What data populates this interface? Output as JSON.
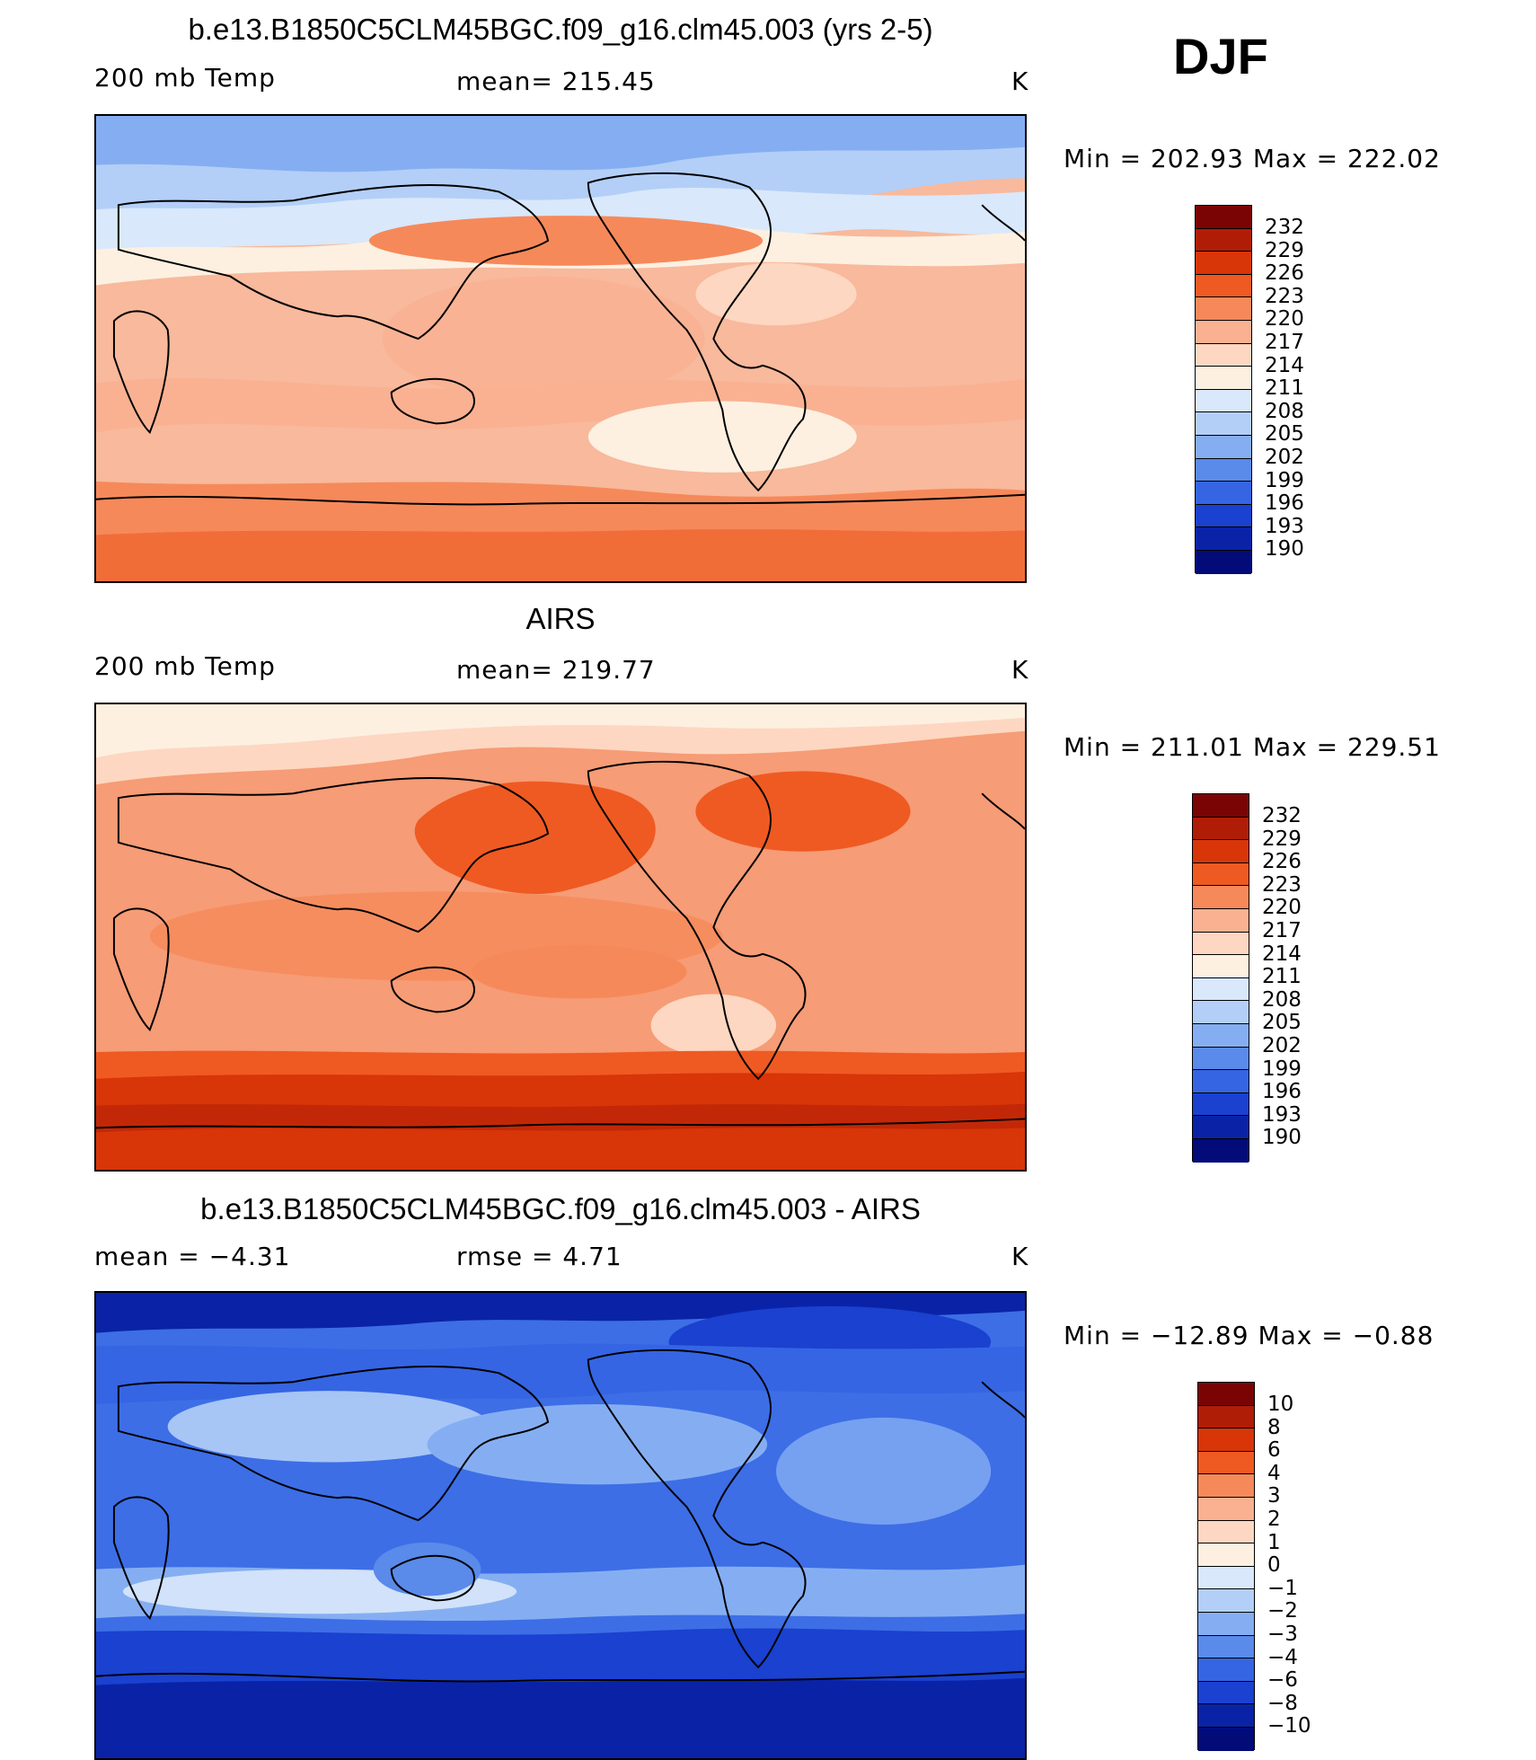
{
  "season": "DJF",
  "panels": [
    {
      "title": "b.e13.B1850C5CLM45BGC.f09_g16.clm45.003 (yrs 2-5)",
      "left_label": "200 mb Temp",
      "center_label": "mean= 215.45",
      "units": "K",
      "minmax": "Min  =  202.93  Max  =  222.02",
      "legend_labels": [
        "232",
        "229",
        "226",
        "223",
        "220",
        "217",
        "214",
        "211",
        "208",
        "205",
        "202",
        "199",
        "196",
        "193",
        "190"
      ],
      "map_background": "#f8b99c"
    },
    {
      "title": "AIRS",
      "left_label": "200 mb Temp",
      "center_label": "mean= 219.77",
      "units": "K",
      "minmax": "Min  =  211.01  Max  =  229.51",
      "legend_labels": [
        "232",
        "229",
        "226",
        "223",
        "220",
        "217",
        "214",
        "211",
        "208",
        "205",
        "202",
        "199",
        "196",
        "193",
        "190"
      ],
      "map_background": "#f69c76"
    },
    {
      "title": "b.e13.B1850C5CLM45BGC.f09_g16.clm45.003 - AIRS",
      "left_label": "mean  =    −4.31",
      "center_label": "rmse  =     4.71",
      "units": "K",
      "minmax": "Min  =  −12.89  Max  =    −0.88",
      "legend_labels": [
        "10",
        "8",
        "6",
        "4",
        "3",
        "2",
        "1",
        "0",
        "−1",
        "−2",
        "−3",
        "−4",
        "−6",
        "−8",
        "−10"
      ],
      "map_background": "#3d6ee6"
    }
  ],
  "colors": {
    "scale": [
      "#7a0403",
      "#b01d07",
      "#d83508",
      "#ef5a22",
      "#f6895a",
      "#f9b192",
      "#fdd7c1",
      "#fdf0e1",
      "#d9e8fb",
      "#b3cff7",
      "#85aef2",
      "#5a8aea",
      "#3565e3",
      "#1a41cf",
      "#0a23a6",
      "#020b78"
    ]
  }
}
